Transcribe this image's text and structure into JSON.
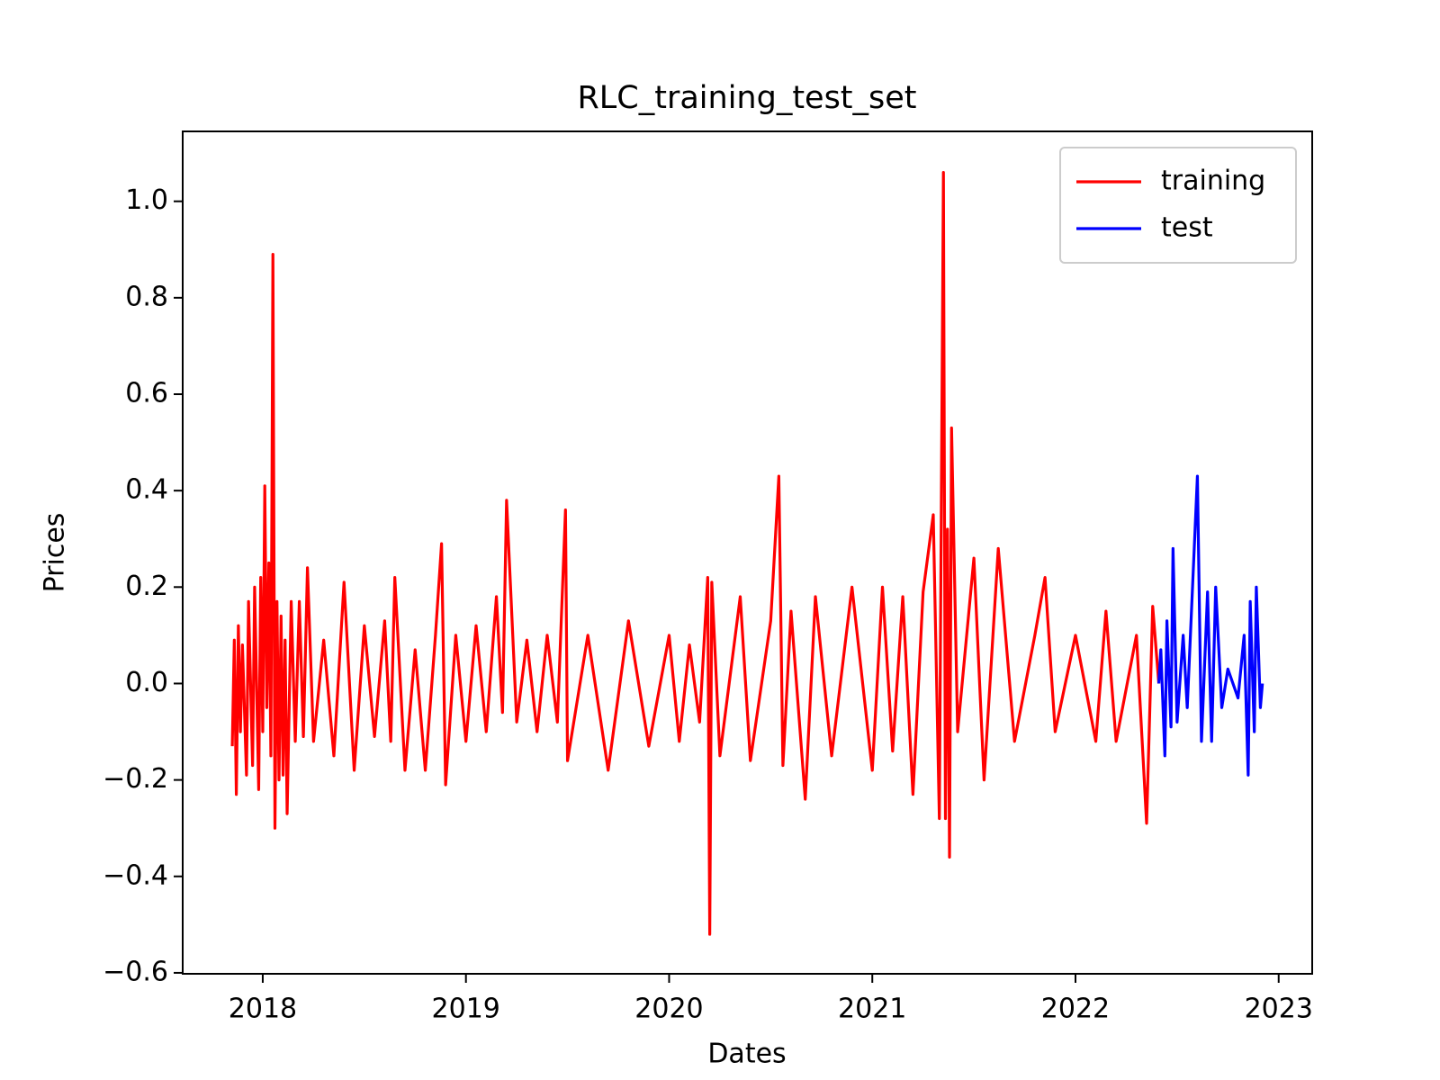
{
  "chart_data": {
    "type": "line",
    "title": "RLC_training_test_set",
    "x_label": "Dates",
    "y_label": "Prices",
    "xlim": [
      2017.606,
      2023.165
    ],
    "xticks": [
      2018,
      2019,
      2020,
      2021,
      2022,
      2023
    ],
    "ylim": [
      -0.602,
      1.145
    ],
    "yticks": [
      {
        "value": -0.6,
        "label": "−0.6"
      },
      {
        "value": -0.4,
        "label": "−0.4"
      },
      {
        "value": -0.2,
        "label": "−0.2"
      },
      {
        "value": 0,
        "label": "0.0"
      },
      0.2,
      0.4,
      0.6,
      0.8,
      {
        "value": 1,
        "label": "1.0"
      }
    ],
    "grid": false,
    "legend": "upper right",
    "series": [
      {
        "name": "training",
        "color": "#ff0000",
        "x": [
          2017.85,
          2017.86,
          2017.87,
          2017.88,
          2017.89,
          2017.9,
          2017.92,
          2017.93,
          2017.95,
          2017.96,
          2017.98,
          2017.99,
          2018.0,
          2018.01,
          2018.02,
          2018.03,
          2018.04,
          2018.05,
          2018.06,
          2018.07,
          2018.08,
          2018.09,
          2018.1,
          2018.11,
          2018.12,
          2018.14,
          2018.16,
          2018.18,
          2018.2,
          2018.22,
          2018.25,
          2018.3,
          2018.35,
          2018.4,
          2018.45,
          2018.5,
          2018.55,
          2018.6,
          2018.63,
          2018.65,
          2018.7,
          2018.75,
          2018.8,
          2018.85,
          2018.88,
          2018.9,
          2018.95,
          2019.0,
          2019.05,
          2019.1,
          2019.15,
          2019.18,
          2019.2,
          2019.25,
          2019.3,
          2019.35,
          2019.4,
          2019.45,
          2019.49,
          2019.5,
          2019.6,
          2019.7,
          2019.8,
          2019.9,
          2020.0,
          2020.05,
          2020.1,
          2020.15,
          2020.19,
          2020.2,
          2020.21,
          2020.25,
          2020.35,
          2020.4,
          2020.5,
          2020.54,
          2020.56,
          2020.6,
          2020.67,
          2020.72,
          2020.8,
          2020.9,
          2021.0,
          2021.05,
          2021.1,
          2021.15,
          2021.2,
          2021.25,
          2021.3,
          2021.33,
          2021.35,
          2021.36,
          2021.37,
          2021.38,
          2021.39,
          2021.42,
          2021.5,
          2021.55,
          2021.62,
          2021.7,
          2021.8,
          2021.85,
          2021.9,
          2022.0,
          2022.1,
          2022.15,
          2022.2,
          2022.3,
          2022.35,
          2022.38,
          2022.41
        ],
        "values": [
          -0.13,
          0.09,
          -0.23,
          0.12,
          -0.1,
          0.08,
          -0.19,
          0.17,
          -0.17,
          0.2,
          -0.22,
          0.22,
          -0.1,
          0.41,
          -0.05,
          0.25,
          -0.15,
          0.89,
          -0.3,
          0.17,
          -0.2,
          0.14,
          -0.19,
          0.09,
          -0.27,
          0.17,
          -0.12,
          0.17,
          -0.11,
          0.24,
          -0.12,
          0.09,
          -0.15,
          0.21,
          -0.18,
          0.12,
          -0.11,
          0.13,
          -0.12,
          0.22,
          -0.18,
          0.07,
          -0.18,
          0.1,
          0.29,
          -0.21,
          0.1,
          -0.12,
          0.12,
          -0.1,
          0.18,
          -0.06,
          0.38,
          -0.08,
          0.09,
          -0.1,
          0.1,
          -0.08,
          0.36,
          -0.16,
          0.1,
          -0.18,
          0.13,
          -0.13,
          0.1,
          -0.12,
          0.08,
          -0.08,
          0.22,
          -0.52,
          0.21,
          -0.15,
          0.18,
          -0.16,
          0.13,
          0.43,
          -0.17,
          0.15,
          -0.24,
          0.18,
          -0.15,
          0.2,
          -0.18,
          0.2,
          -0.14,
          0.18,
          -0.23,
          0.19,
          0.35,
          -0.28,
          1.06,
          -0.28,
          0.32,
          -0.36,
          0.53,
          -0.1,
          0.26,
          -0.2,
          0.28,
          -0.12,
          0.1,
          0.22,
          -0.1,
          0.1,
          -0.12,
          0.15,
          -0.12,
          0.1,
          -0.29,
          0.16,
          0.0
        ]
      },
      {
        "name": "test",
        "color": "#0000ff",
        "x": [
          2022.41,
          2022.42,
          2022.44,
          2022.45,
          2022.47,
          2022.48,
          2022.5,
          2022.53,
          2022.55,
          2022.6,
          2022.62,
          2022.65,
          2022.67,
          2022.69,
          2022.72,
          2022.75,
          2022.8,
          2022.83,
          2022.85,
          2022.86,
          2022.88,
          2022.89,
          2022.91,
          2022.92
        ],
        "values": [
          0.0,
          0.07,
          -0.15,
          0.13,
          -0.09,
          0.28,
          -0.08,
          0.1,
          -0.05,
          0.43,
          -0.12,
          0.19,
          -0.12,
          0.2,
          -0.05,
          0.03,
          -0.03,
          0.1,
          -0.19,
          0.17,
          -0.1,
          0.2,
          -0.05,
          0.0
        ]
      }
    ]
  }
}
